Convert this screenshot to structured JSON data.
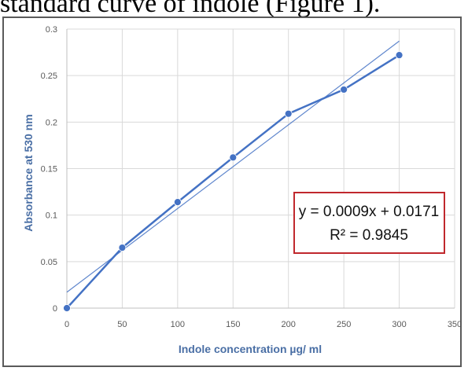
{
  "caption": "standard curve of indole (Figure 1).",
  "chart_data": {
    "type": "line",
    "xlabel": "Indole concentration µg/ ml",
    "ylabel": "Absorbance at 530 nm",
    "xlim": [
      0,
      350
    ],
    "ylim": [
      0,
      0.3
    ],
    "xticks": [
      "0",
      "50",
      "100",
      "150",
      "200",
      "250",
      "300",
      "350"
    ],
    "yticks": [
      "0",
      "0.05",
      "0.1",
      "0.15",
      "0.2",
      "0.25",
      "0.3"
    ],
    "grid": true,
    "series": [
      {
        "x": [
          0,
          50,
          100,
          150,
          200,
          250,
          300
        ],
        "y": [
          0.0,
          0.065,
          0.114,
          0.162,
          0.209,
          0.235,
          0.272
        ],
        "color": "#4472c4",
        "markers": true
      }
    ],
    "trendline": {
      "slope": 0.0009,
      "intercept": 0.0171,
      "x_range": [
        0,
        300
      ],
      "color": "#4472c4"
    },
    "annotation": {
      "equation": "y = 0.0009x + 0.0171",
      "r_squared": "R² = 0.9845",
      "border_color": "#c0282d"
    }
  }
}
